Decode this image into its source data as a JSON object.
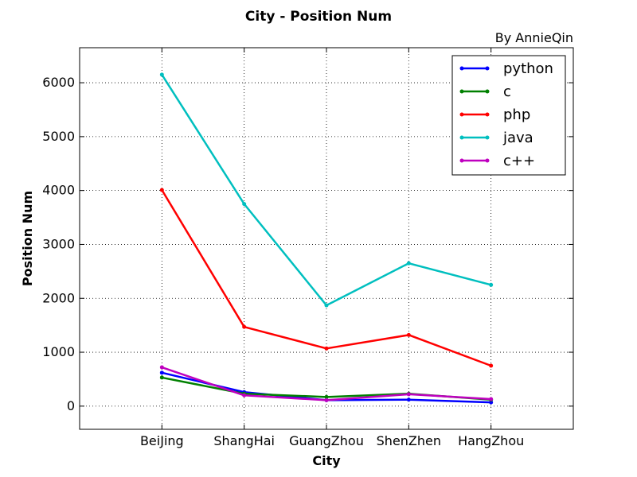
{
  "chart_data": {
    "type": "line",
    "title": "City - Position Num",
    "subtitle": "By AnnieQin",
    "xlabel": "City",
    "ylabel": "Position Num",
    "categories": [
      "BeiJing",
      "ShangHai",
      "GuangZhou",
      "ShenZhen",
      "HangZhou"
    ],
    "ylim": [
      -430,
      6650
    ],
    "yticks": [
      0,
      1000,
      2000,
      3000,
      4000,
      5000,
      6000
    ],
    "grid": true,
    "legend_position": "top-right",
    "series": [
      {
        "name": "python",
        "color": "#0000ff",
        "values": [
          620,
          260,
          110,
          120,
          70
        ]
      },
      {
        "name": "c",
        "color": "#008000",
        "values": [
          530,
          230,
          170,
          230,
          120
        ]
      },
      {
        "name": "php",
        "color": "#ff0000",
        "values": [
          4010,
          1470,
          1070,
          1320,
          750
        ]
      },
      {
        "name": "java",
        "color": "#00bfbf",
        "values": [
          6150,
          3750,
          1870,
          2650,
          2250
        ]
      },
      {
        "name": "c++",
        "color": "#bf00bf",
        "values": [
          720,
          200,
          110,
          220,
          130
        ]
      }
    ]
  }
}
